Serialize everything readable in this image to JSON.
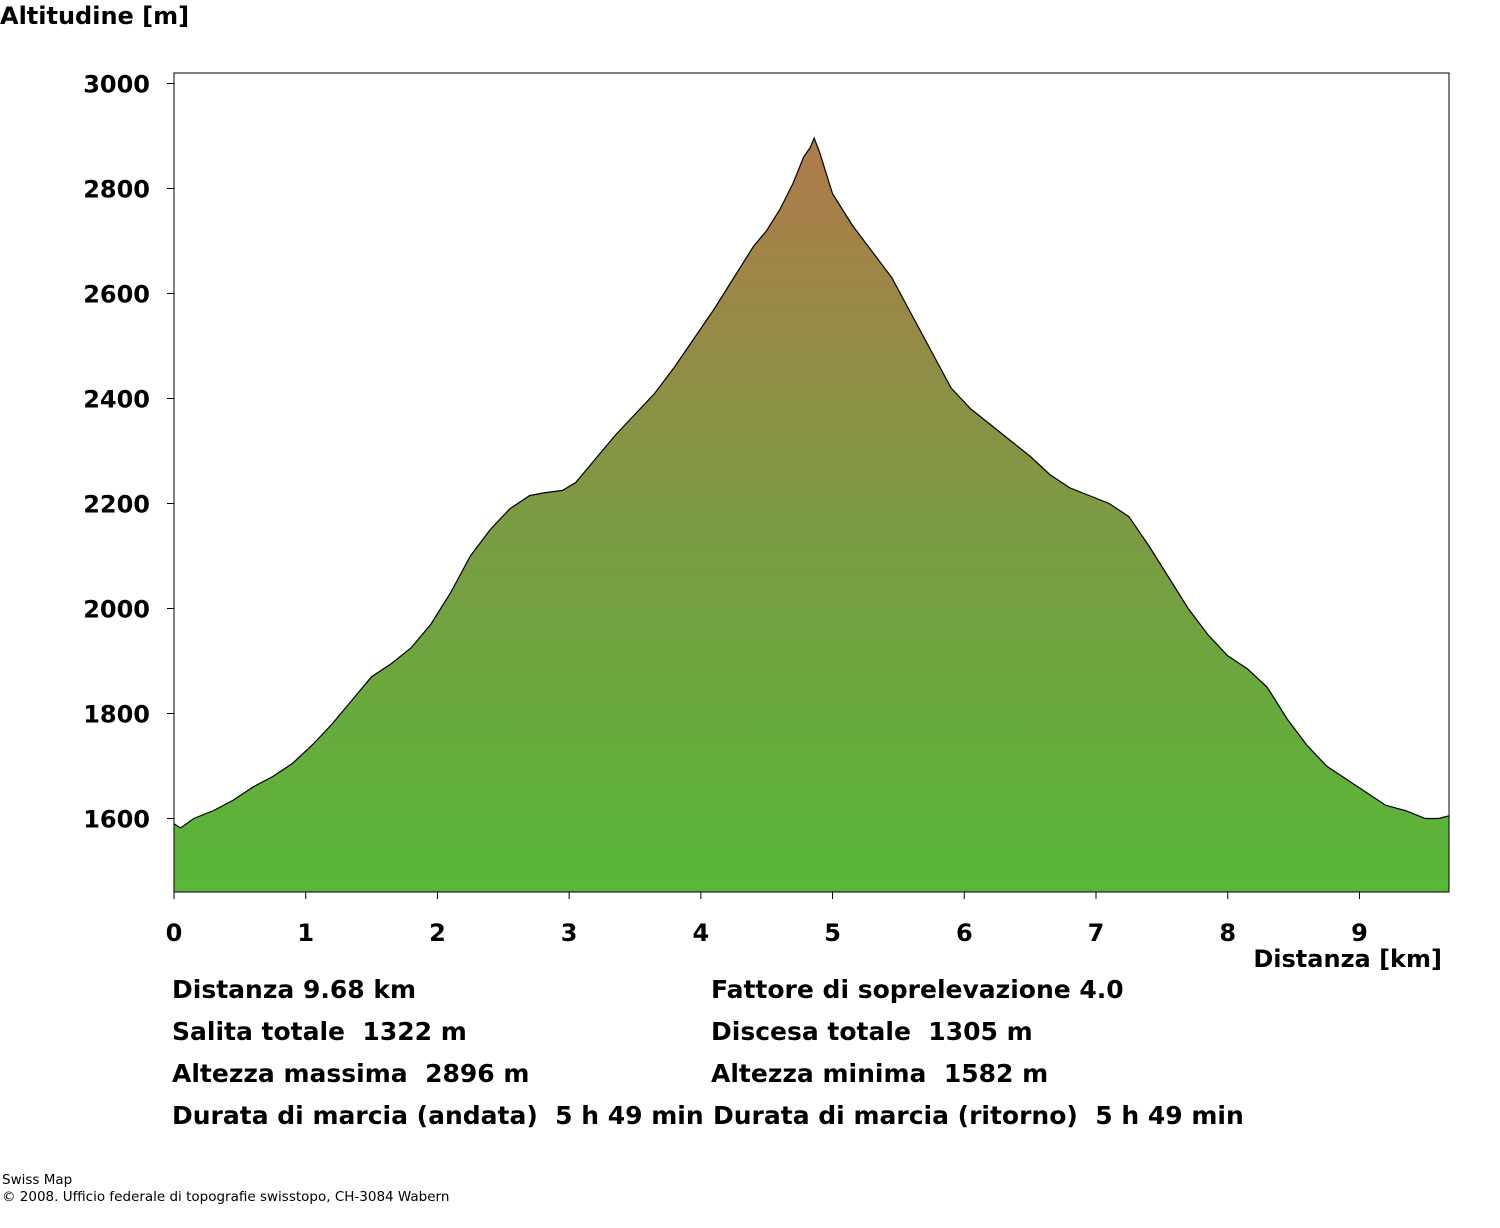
{
  "chart_data": {
    "type": "area",
    "ylabel": "Altitudine [m]",
    "xlabel": "Distanza [km]",
    "xlim": [
      0,
      9.68
    ],
    "ylim": [
      1460,
      3020
    ],
    "xticks": [
      0,
      1,
      2,
      3,
      4,
      5,
      6,
      7,
      8,
      9
    ],
    "yticks": [
      1600,
      1800,
      2000,
      2200,
      2400,
      2600,
      2800,
      3000
    ],
    "fill_gradient": {
      "top": "#b07a4a",
      "middle": "#7c9a43",
      "bottom": "#57b838"
    },
    "line_color": "#000000",
    "x": [
      0,
      0.05,
      0.15,
      0.3,
      0.45,
      0.6,
      0.75,
      0.9,
      1.05,
      1.2,
      1.35,
      1.5,
      1.65,
      1.8,
      1.95,
      2.1,
      2.25,
      2.4,
      2.55,
      2.7,
      2.8,
      2.95,
      3.05,
      3.2,
      3.35,
      3.5,
      3.65,
      3.8,
      3.95,
      4.1,
      4.25,
      4.4,
      4.5,
      4.6,
      4.7,
      4.78,
      4.83,
      4.86,
      4.9,
      5.0,
      5.15,
      5.3,
      5.45,
      5.6,
      5.75,
      5.9,
      6.05,
      6.2,
      6.35,
      6.5,
      6.65,
      6.8,
      6.95,
      7.1,
      7.25,
      7.4,
      7.55,
      7.7,
      7.85,
      8.0,
      8.15,
      8.3,
      8.45,
      8.6,
      8.75,
      8.9,
      9.05,
      9.2,
      9.35,
      9.5,
      9.6,
      9.68
    ],
    "y": [
      1590,
      1582,
      1600,
      1615,
      1635,
      1660,
      1680,
      1705,
      1740,
      1780,
      1825,
      1870,
      1895,
      1925,
      1970,
      2030,
      2100,
      2150,
      2190,
      2215,
      2220,
      2225,
      2240,
      2285,
      2330,
      2370,
      2410,
      2460,
      2515,
      2570,
      2630,
      2690,
      2720,
      2760,
      2810,
      2860,
      2878,
      2896,
      2870,
      2790,
      2730,
      2680,
      2630,
      2560,
      2490,
      2420,
      2380,
      2350,
      2320,
      2290,
      2255,
      2230,
      2215,
      2200,
      2175,
      2120,
      2060,
      2000,
      1950,
      1910,
      1885,
      1850,
      1790,
      1740,
      1700,
      1675,
      1650,
      1625,
      1615,
      1600,
      1600,
      1605
    ]
  },
  "axis": {
    "y_title": "Altitudine [m]",
    "x_title": "Distanza [km]"
  },
  "stats": {
    "distance": "Distanza 9.68 km",
    "exaggeration": "Fattore di soprelevazione 4.0",
    "ascent": "Salita totale  1322 m",
    "descent": "Discesa totale  1305 m",
    "max_alt": "Altezza massima  2896 m",
    "min_alt": "Altezza minima  1582 m",
    "time_out": "Durata di marcia (andata)  5 h 49 min",
    "time_back": "Durata di marcia (ritorno)  5 h 49 min"
  },
  "footer": {
    "line1": "Swiss Map",
    "line2": "© 2008. Ufficio federale di topografie swisstopo, CH-3084 Wabern"
  }
}
